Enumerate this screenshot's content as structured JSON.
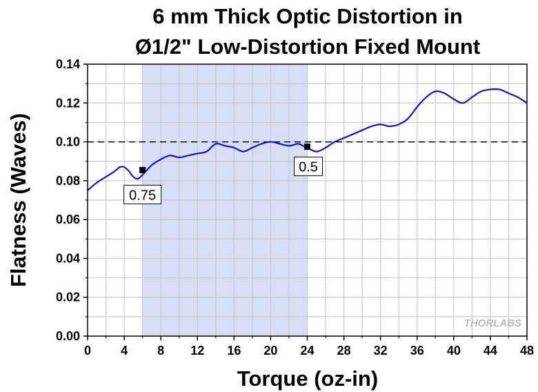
{
  "chart_data": {
    "type": "line",
    "title": [
      "6 mm Thick Optic Distortion in",
      "Ø1/2\" Low-Distortion Fixed Mount"
    ],
    "xlabel": "Torque (oz-in)",
    "ylabel": "Flatness (Waves)",
    "xlim": [
      0,
      48
    ],
    "ylim": [
      0,
      0.14
    ],
    "xticks": [
      0,
      4,
      8,
      12,
      16,
      20,
      24,
      28,
      32,
      36,
      40,
      44,
      48
    ],
    "yticks": [
      0.0,
      0.02,
      0.04,
      0.06,
      0.08,
      0.1,
      0.12,
      0.14
    ],
    "ytick_labels": [
      "0.00",
      "0.02",
      "0.04",
      "0.06",
      "0.08",
      "0.10",
      "0.12",
      "0.14"
    ],
    "grid": true,
    "shaded_region": {
      "x": [
        6,
        24
      ],
      "color": "#d6dff7"
    },
    "reference_line": {
      "y": 0.1,
      "style": "dashed",
      "color": "#000000"
    },
    "series": [
      {
        "color": "#1010d0",
        "x": [
          0,
          1,
          2,
          3,
          3.5,
          4,
          4.5,
          5,
          5.5,
          6,
          7,
          8,
          9,
          10,
          11,
          12,
          13,
          14,
          15,
          16,
          17,
          18,
          19,
          20,
          21,
          22,
          23,
          23.5,
          24,
          25,
          26,
          27,
          28,
          29,
          30,
          31,
          32,
          33,
          34,
          35,
          36,
          37,
          38,
          39,
          40,
          41,
          42,
          43,
          44,
          45,
          46,
          47,
          48
        ],
        "y": [
          0.075,
          0.079,
          0.082,
          0.085,
          0.087,
          0.087,
          0.085,
          0.082,
          0.081,
          0.083,
          0.088,
          0.091,
          0.093,
          0.092,
          0.093,
          0.094,
          0.095,
          0.099,
          0.098,
          0.097,
          0.095,
          0.097,
          0.099,
          0.1,
          0.099,
          0.098,
          0.099,
          0.098,
          0.097,
          0.095,
          0.097,
          0.1,
          0.102,
          0.104,
          0.106,
          0.108,
          0.109,
          0.108,
          0.109,
          0.112,
          0.118,
          0.123,
          0.126,
          0.125,
          0.122,
          0.12,
          0.123,
          0.126,
          0.127,
          0.127,
          0.125,
          0.123,
          0.12
        ]
      }
    ],
    "annotations": [
      {
        "label": "0.75",
        "x": 6,
        "y": 0.0855
      },
      {
        "label": "0.5",
        "x": 24,
        "y": 0.0975
      }
    ],
    "watermark": "THORLABS"
  }
}
